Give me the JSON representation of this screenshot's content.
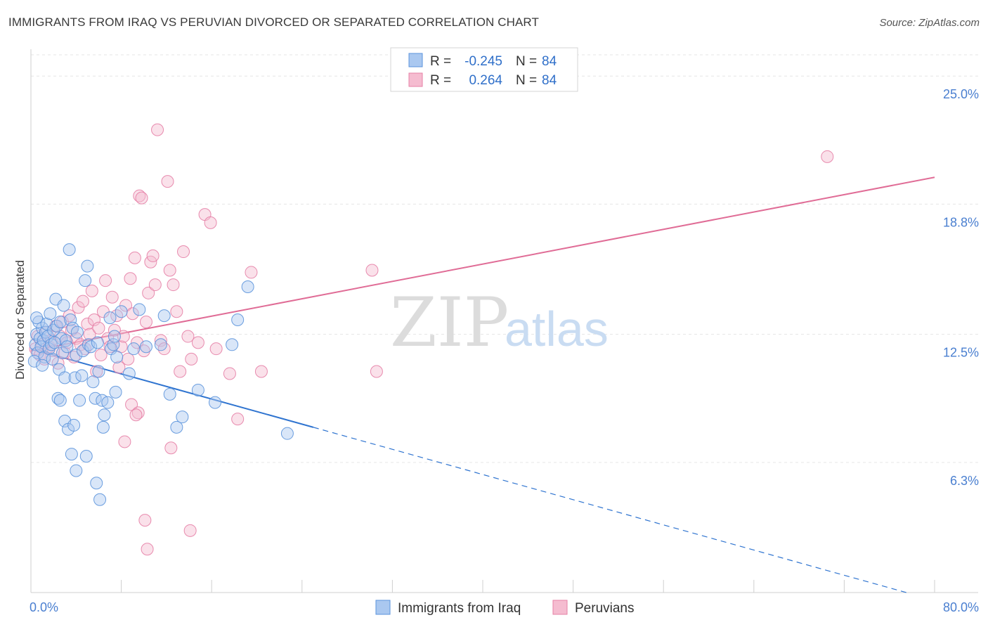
{
  "header": {
    "title": "IMMIGRANTS FROM IRAQ VS PERUVIAN DIVORCED OR SEPARATED CORRELATION CHART",
    "source": "Source: ZipAtlas.com"
  },
  "watermark": {
    "zip": "ZIP",
    "atlas": "atlas"
  },
  "legend": {
    "series": [
      {
        "r_label": "R =",
        "r_value": "-0.245",
        "n_label": "N =",
        "n_value": "84"
      },
      {
        "r_label": "R =",
        "r_value": "0.264",
        "n_label": "N =",
        "n_value": "84"
      }
    ]
  },
  "bottom_legend": [
    "Immigrants from Iraq",
    "Peruvians"
  ],
  "chart_data": {
    "type": "scatter",
    "title": "IMMIGRANTS FROM IRAQ VS PERUVIAN DIVORCED OR SEPARATED CORRELATION CHART",
    "xlabel": "",
    "ylabel": "Divorced or Separated",
    "xlim": [
      0,
      80
    ],
    "ylim": [
      0,
      26.3
    ],
    "y_ticks": [
      6.3,
      12.5,
      18.8,
      25.0
    ],
    "y_tick_labels": [
      "6.3%",
      "12.5%",
      "18.8%",
      "25.0%"
    ],
    "x_tick_labels": [
      "0.0%",
      "80.0%"
    ],
    "x_minor_ticks": [
      8,
      16,
      24,
      32,
      40,
      48,
      56,
      64,
      72,
      80
    ],
    "grid": true,
    "colors": {
      "iraq_fill": "#aac8f0",
      "iraq_stroke": "#5b93dc",
      "iraq_line": "#2f74d0",
      "peru_fill": "#f5bcd0",
      "peru_stroke": "#e680a6",
      "peru_line": "#e06c96",
      "value_text": "#2f6fc9",
      "label_text": "#333333"
    },
    "series": [
      {
        "name": "Immigrants from Iraq",
        "r": -0.245,
        "n": 84,
        "trend": {
          "x0": 0,
          "y0": 11.8,
          "x1": 25,
          "y1": 8.0,
          "dashed_to_x": 77.5,
          "dashed_to_y": 0.0
        },
        "points": [
          [
            0.4,
            12.0
          ],
          [
            0.6,
            11.6
          ],
          [
            0.5,
            12.5
          ],
          [
            0.8,
            12.3
          ],
          [
            0.9,
            11.9
          ],
          [
            1.0,
            12.8
          ],
          [
            1.1,
            12.2
          ],
          [
            0.7,
            13.1
          ],
          [
            1.2,
            11.4
          ],
          [
            1.3,
            12.6
          ],
          [
            1.4,
            13.0
          ],
          [
            1.5,
            12.4
          ],
          [
            1.6,
            11.8
          ],
          [
            1.7,
            13.5
          ],
          [
            1.8,
            12.0
          ],
          [
            0.3,
            11.2
          ],
          [
            0.5,
            13.3
          ],
          [
            1.9,
            11.3
          ],
          [
            2.0,
            12.7
          ],
          [
            2.2,
            14.2
          ],
          [
            2.3,
            12.9
          ],
          [
            2.5,
            10.8
          ],
          [
            2.6,
            13.1
          ],
          [
            2.7,
            12.3
          ],
          [
            2.8,
            11.6
          ],
          [
            2.9,
            13.9
          ],
          [
            3.0,
            10.4
          ],
          [
            3.1,
            12.2
          ],
          [
            3.2,
            11.9
          ],
          [
            3.4,
            16.6
          ],
          [
            3.5,
            13.2
          ],
          [
            3.7,
            12.8
          ],
          [
            3.9,
            10.4
          ],
          [
            4.0,
            11.5
          ],
          [
            4.1,
            12.6
          ],
          [
            4.3,
            9.3
          ],
          [
            4.5,
            10.5
          ],
          [
            4.6,
            11.7
          ],
          [
            4.8,
            15.1
          ],
          [
            5.0,
            15.8
          ],
          [
            5.1,
            12.0
          ],
          [
            5.3,
            11.9
          ],
          [
            5.5,
            10.2
          ],
          [
            5.7,
            9.4
          ],
          [
            5.9,
            12.1
          ],
          [
            6.0,
            10.7
          ],
          [
            6.3,
            9.3
          ],
          [
            6.5,
            8.6
          ],
          [
            6.8,
            9.2
          ],
          [
            7.1,
            11.8
          ],
          [
            7.3,
            12.0
          ],
          [
            7.5,
            9.7
          ],
          [
            2.4,
            9.4
          ],
          [
            2.6,
            9.3
          ],
          [
            3.0,
            8.3
          ],
          [
            3.3,
            7.9
          ],
          [
            3.6,
            6.7
          ],
          [
            4.0,
            5.9
          ],
          [
            4.9,
            6.6
          ],
          [
            5.8,
            5.3
          ],
          [
            6.1,
            4.5
          ],
          [
            3.8,
            8.1
          ],
          [
            6.4,
            8.0
          ],
          [
            7.0,
            13.3
          ],
          [
            7.4,
            12.4
          ],
          [
            7.6,
            11.4
          ],
          [
            8.0,
            13.6
          ],
          [
            8.7,
            10.6
          ],
          [
            9.1,
            11.8
          ],
          [
            9.6,
            13.7
          ],
          [
            10.2,
            11.9
          ],
          [
            11.5,
            12.0
          ],
          [
            11.8,
            13.4
          ],
          [
            12.3,
            9.6
          ],
          [
            12.9,
            8.0
          ],
          [
            13.4,
            8.5
          ],
          [
            14.8,
            9.8
          ],
          [
            16.3,
            9.2
          ],
          [
            17.8,
            12.0
          ],
          [
            18.3,
            13.2
          ],
          [
            19.2,
            14.8
          ],
          [
            22.7,
            7.7
          ],
          [
            2.1,
            12.1
          ],
          [
            1.0,
            11.0
          ]
        ]
      },
      {
        "name": "Peruvians",
        "r": 0.264,
        "n": 84,
        "trend": {
          "x0": 0,
          "y0": 11.7,
          "x1": 80,
          "y1": 20.1
        },
        "points": [
          [
            0.4,
            11.8
          ],
          [
            0.6,
            12.4
          ],
          [
            0.8,
            11.5
          ],
          [
            1.0,
            12.0
          ],
          [
            1.2,
            11.3
          ],
          [
            1.4,
            12.6
          ],
          [
            1.6,
            11.9
          ],
          [
            1.8,
            12.2
          ],
          [
            2.0,
            11.7
          ],
          [
            2.2,
            12.9
          ],
          [
            2.4,
            11.1
          ],
          [
            2.6,
            12.4
          ],
          [
            2.8,
            13.1
          ],
          [
            3.0,
            11.6
          ],
          [
            3.2,
            12.1
          ],
          [
            3.4,
            13.4
          ],
          [
            3.6,
            12.7
          ],
          [
            3.8,
            11.4
          ],
          [
            4.0,
            12.3
          ],
          [
            4.2,
            13.8
          ],
          [
            4.4,
            12.0
          ],
          [
            4.6,
            14.1
          ],
          [
            4.8,
            11.8
          ],
          [
            5.0,
            13.0
          ],
          [
            5.2,
            12.5
          ],
          [
            5.4,
            14.6
          ],
          [
            5.6,
            13.2
          ],
          [
            5.8,
            10.7
          ],
          [
            6.0,
            12.8
          ],
          [
            6.2,
            11.5
          ],
          [
            6.4,
            13.6
          ],
          [
            6.6,
            15.1
          ],
          [
            6.8,
            12.3
          ],
          [
            7.0,
            11.9
          ],
          [
            7.2,
            14.3
          ],
          [
            7.4,
            12.7
          ],
          [
            7.6,
            13.4
          ],
          [
            7.8,
            10.9
          ],
          [
            8.0,
            11.9
          ],
          [
            8.2,
            12.4
          ],
          [
            8.4,
            13.9
          ],
          [
            8.6,
            11.3
          ],
          [
            8.8,
            15.2
          ],
          [
            9.0,
            13.5
          ],
          [
            9.2,
            16.2
          ],
          [
            9.4,
            12.1
          ],
          [
            9.6,
            19.2
          ],
          [
            9.8,
            19.1
          ],
          [
            10.0,
            11.7
          ],
          [
            10.2,
            13.1
          ],
          [
            10.4,
            14.5
          ],
          [
            10.6,
            16.0
          ],
          [
            10.8,
            16.3
          ],
          [
            11.0,
            14.9
          ],
          [
            11.2,
            22.4
          ],
          [
            11.5,
            12.2
          ],
          [
            11.8,
            11.8
          ],
          [
            12.1,
            19.9
          ],
          [
            12.3,
            15.6
          ],
          [
            12.6,
            14.9
          ],
          [
            12.9,
            13.6
          ],
          [
            13.2,
            10.7
          ],
          [
            13.5,
            16.5
          ],
          [
            13.9,
            12.4
          ],
          [
            14.2,
            11.3
          ],
          [
            14.8,
            12.1
          ],
          [
            15.4,
            18.3
          ],
          [
            15.9,
            17.9
          ],
          [
            16.4,
            11.8
          ],
          [
            17.6,
            10.6
          ],
          [
            18.3,
            8.4
          ],
          [
            19.5,
            15.5
          ],
          [
            20.4,
            10.7
          ],
          [
            8.9,
            9.1
          ],
          [
            9.5,
            8.7
          ],
          [
            9.3,
            8.6
          ],
          [
            8.3,
            7.3
          ],
          [
            12.4,
            7.0
          ],
          [
            10.1,
            3.5
          ],
          [
            10.3,
            2.1
          ],
          [
            14.1,
            3.0
          ],
          [
            30.2,
            15.6
          ],
          [
            30.6,
            10.7
          ],
          [
            70.5,
            21.1
          ]
        ]
      }
    ]
  }
}
